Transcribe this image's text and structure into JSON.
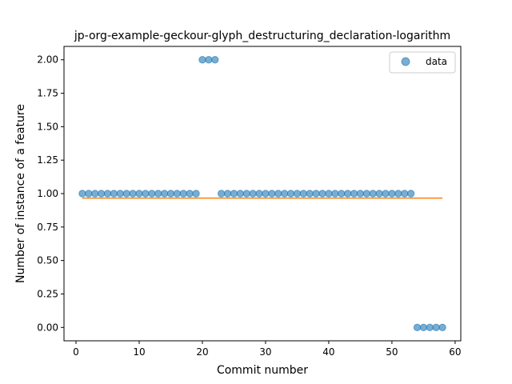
{
  "chart_data": {
    "type": "scatter",
    "title": "jp-org-example-geckour-glyph_destructuring_declaration-logarithm",
    "xlabel": "Commit number",
    "ylabel": "Number of instance of a feature",
    "xlim": [
      -1.9,
      60.9
    ],
    "ylim": [
      -0.1,
      2.1
    ],
    "xticks": [
      0,
      10,
      20,
      30,
      40,
      50,
      60
    ],
    "xtick_labels": [
      "0",
      "10",
      "20",
      "30",
      "40",
      "50",
      "60"
    ],
    "yticks": [
      0.0,
      0.25,
      0.5,
      0.75,
      1.0,
      1.25,
      1.5,
      1.75,
      2.0
    ],
    "ytick_labels": [
      "0.00",
      "0.25",
      "0.50",
      "0.75",
      "1.00",
      "1.25",
      "1.50",
      "1.75",
      "2.00"
    ],
    "grid": false,
    "legend_position": "top-right",
    "series": [
      {
        "name": "data",
        "kind": "scatter",
        "color": "#1f77b4",
        "x": [
          1,
          2,
          3,
          4,
          5,
          6,
          7,
          8,
          9,
          10,
          11,
          12,
          13,
          14,
          15,
          16,
          17,
          18,
          19,
          20,
          21,
          22,
          23,
          24,
          25,
          26,
          27,
          28,
          29,
          30,
          31,
          32,
          33,
          34,
          35,
          36,
          37,
          38,
          39,
          40,
          41,
          42,
          43,
          44,
          45,
          46,
          47,
          48,
          49,
          50,
          51,
          52,
          53,
          54,
          55,
          56,
          57,
          58
        ],
        "y": [
          1,
          1,
          1,
          1,
          1,
          1,
          1,
          1,
          1,
          1,
          1,
          1,
          1,
          1,
          1,
          1,
          1,
          1,
          1,
          2,
          2,
          2,
          1,
          1,
          1,
          1,
          1,
          1,
          1,
          1,
          1,
          1,
          1,
          1,
          1,
          1,
          1,
          1,
          1,
          1,
          1,
          1,
          1,
          1,
          1,
          1,
          1,
          1,
          1,
          1,
          1,
          1,
          1,
          0,
          0,
          0,
          0,
          0
        ]
      },
      {
        "kind": "line",
        "color": "#ff7f0e",
        "x": [
          1,
          58
        ],
        "y": [
          0.966,
          0.966
        ]
      }
    ]
  }
}
